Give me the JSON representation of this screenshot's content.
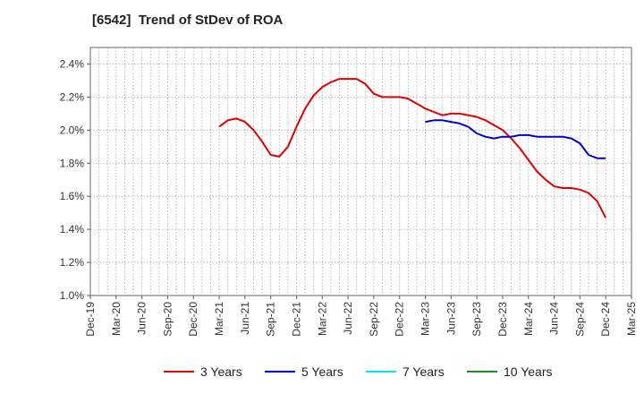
{
  "title": "[6542]  Trend of StDev of ROA",
  "chart_data": {
    "type": "line",
    "title": "[6542]  Trend of StDev of ROA",
    "xlabel": "",
    "ylabel": "",
    "x_ticks": [
      "Dec-19",
      "Mar-20",
      "Jun-20",
      "Sep-20",
      "Dec-20",
      "Mar-21",
      "Jun-21",
      "Sep-21",
      "Dec-21",
      "Mar-22",
      "Jun-22",
      "Sep-22",
      "Dec-22",
      "Mar-23",
      "Jun-23",
      "Sep-23",
      "Dec-23",
      "Mar-24",
      "Jun-24",
      "Sep-24",
      "Dec-24",
      "Mar-25"
    ],
    "y_ticks": [
      "1.0%",
      "1.2%",
      "1.4%",
      "1.6%",
      "1.8%",
      "2.0%",
      "2.2%",
      "2.4%"
    ],
    "ylim": [
      1.0,
      2.5
    ],
    "grid": true,
    "legend_position": "bottom",
    "series": [
      {
        "name": "3 Years",
        "color": "#e00000",
        "x": [
          "Mar-21",
          "Apr-21",
          "May-21",
          "Jun-21",
          "Jul-21",
          "Aug-21",
          "Sep-21",
          "Oct-21",
          "Nov-21",
          "Dec-21",
          "Jan-22",
          "Feb-22",
          "Mar-22",
          "Apr-22",
          "May-22",
          "Jun-22",
          "Jul-22",
          "Aug-22",
          "Sep-22",
          "Oct-22",
          "Nov-22",
          "Dec-22",
          "Jan-23",
          "Feb-23",
          "Mar-23",
          "Apr-23",
          "May-23",
          "Jun-23",
          "Jul-23",
          "Aug-23",
          "Sep-23",
          "Oct-23",
          "Nov-23",
          "Dec-23",
          "Jan-24",
          "Feb-24",
          "Mar-24",
          "Apr-24",
          "May-24",
          "Jun-24",
          "Jul-24",
          "Aug-24",
          "Sep-24",
          "Oct-24",
          "Nov-24",
          "Dec-24"
        ],
        "values": [
          2.02,
          2.06,
          2.07,
          2.05,
          2.0,
          1.93,
          1.85,
          1.84,
          1.9,
          2.02,
          2.13,
          2.21,
          2.26,
          2.29,
          2.31,
          2.31,
          2.31,
          2.28,
          2.22,
          2.2,
          2.2,
          2.2,
          2.19,
          2.16,
          2.13,
          2.11,
          2.09,
          2.1,
          2.1,
          2.09,
          2.08,
          2.06,
          2.03,
          2.0,
          1.95,
          1.89,
          1.82,
          1.75,
          1.7,
          1.66,
          1.65,
          1.65,
          1.64,
          1.62,
          1.57,
          1.47
        ]
      },
      {
        "name": "5 Years",
        "color": "#0000cc",
        "x": [
          "Mar-23",
          "Apr-23",
          "May-23",
          "Jun-23",
          "Jul-23",
          "Aug-23",
          "Sep-23",
          "Oct-23",
          "Nov-23",
          "Dec-23",
          "Jan-24",
          "Feb-24",
          "Mar-24",
          "Apr-24",
          "May-24",
          "Jun-24",
          "Jul-24",
          "Aug-24",
          "Sep-24",
          "Oct-24",
          "Nov-24",
          "Dec-24"
        ],
        "values": [
          2.05,
          2.06,
          2.06,
          2.05,
          2.04,
          2.02,
          1.98,
          1.96,
          1.95,
          1.96,
          1.96,
          1.97,
          1.97,
          1.96,
          1.96,
          1.96,
          1.96,
          1.95,
          1.92,
          1.85,
          1.83,
          1.83
        ]
      },
      {
        "name": "7 Years",
        "color": "#00e5ee",
        "x": [],
        "values": []
      },
      {
        "name": "10 Years",
        "color": "#228b22",
        "x": [],
        "values": []
      }
    ]
  }
}
